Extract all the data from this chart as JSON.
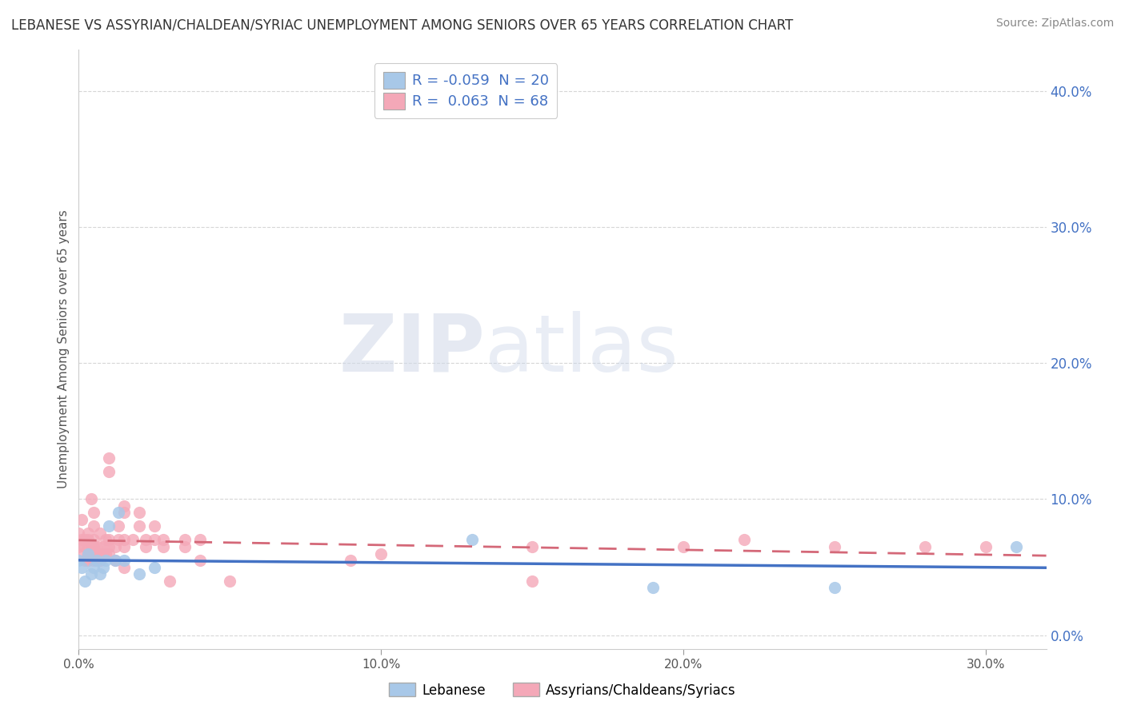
{
  "title": "LEBANESE VS ASSYRIAN/CHALDEAN/SYRIAC UNEMPLOYMENT AMONG SENIORS OVER 65 YEARS CORRELATION CHART",
  "source": "Source: ZipAtlas.com",
  "ylabel": "Unemployment Among Seniors over 65 years",
  "xlim": [
    0.0,
    0.32
  ],
  "ylim": [
    -0.01,
    0.43
  ],
  "watermark_zip": "ZIP",
  "watermark_atlas": "atlas",
  "background_color": "#ffffff",
  "grid_color": "#cccccc",
  "lebanese_color": "#a8c8e8",
  "lebanese_line_color": "#4472c4",
  "assyrian_color": "#f4a8b8",
  "assyrian_line_color": "#d46878",
  "lebanese_points": [
    [
      0.0,
      0.055
    ],
    [
      0.001,
      0.05
    ],
    [
      0.002,
      0.04
    ],
    [
      0.003,
      0.06
    ],
    [
      0.004,
      0.045
    ],
    [
      0.005,
      0.05
    ],
    [
      0.006,
      0.055
    ],
    [
      0.007,
      0.045
    ],
    [
      0.008,
      0.05
    ],
    [
      0.009,
      0.055
    ],
    [
      0.01,
      0.08
    ],
    [
      0.012,
      0.055
    ],
    [
      0.013,
      0.09
    ],
    [
      0.015,
      0.055
    ],
    [
      0.02,
      0.045
    ],
    [
      0.025,
      0.05
    ],
    [
      0.13,
      0.07
    ],
    [
      0.19,
      0.035
    ],
    [
      0.25,
      0.035
    ],
    [
      0.31,
      0.065
    ]
  ],
  "assyrian_points": [
    [
      0.0,
      0.065
    ],
    [
      0.0,
      0.075
    ],
    [
      0.001,
      0.06
    ],
    [
      0.001,
      0.07
    ],
    [
      0.001,
      0.085
    ],
    [
      0.002,
      0.055
    ],
    [
      0.002,
      0.065
    ],
    [
      0.002,
      0.07
    ],
    [
      0.003,
      0.055
    ],
    [
      0.003,
      0.06
    ],
    [
      0.003,
      0.065
    ],
    [
      0.003,
      0.07
    ],
    [
      0.003,
      0.075
    ],
    [
      0.004,
      0.06
    ],
    [
      0.004,
      0.065
    ],
    [
      0.004,
      0.1
    ],
    [
      0.005,
      0.055
    ],
    [
      0.005,
      0.065
    ],
    [
      0.005,
      0.07
    ],
    [
      0.005,
      0.08
    ],
    [
      0.005,
      0.09
    ],
    [
      0.006,
      0.06
    ],
    [
      0.006,
      0.065
    ],
    [
      0.007,
      0.055
    ],
    [
      0.007,
      0.06
    ],
    [
      0.007,
      0.075
    ],
    [
      0.008,
      0.06
    ],
    [
      0.008,
      0.065
    ],
    [
      0.009,
      0.06
    ],
    [
      0.009,
      0.07
    ],
    [
      0.01,
      0.06
    ],
    [
      0.01,
      0.065
    ],
    [
      0.01,
      0.07
    ],
    [
      0.01,
      0.12
    ],
    [
      0.01,
      0.13
    ],
    [
      0.012,
      0.055
    ],
    [
      0.012,
      0.065
    ],
    [
      0.013,
      0.07
    ],
    [
      0.013,
      0.08
    ],
    [
      0.015,
      0.05
    ],
    [
      0.015,
      0.065
    ],
    [
      0.015,
      0.07
    ],
    [
      0.015,
      0.09
    ],
    [
      0.015,
      0.095
    ],
    [
      0.018,
      0.07
    ],
    [
      0.02,
      0.08
    ],
    [
      0.02,
      0.09
    ],
    [
      0.022,
      0.065
    ],
    [
      0.022,
      0.07
    ],
    [
      0.025,
      0.07
    ],
    [
      0.025,
      0.08
    ],
    [
      0.028,
      0.065
    ],
    [
      0.028,
      0.07
    ],
    [
      0.03,
      0.04
    ],
    [
      0.035,
      0.065
    ],
    [
      0.035,
      0.07
    ],
    [
      0.04,
      0.055
    ],
    [
      0.04,
      0.07
    ],
    [
      0.05,
      0.04
    ],
    [
      0.09,
      0.055
    ],
    [
      0.1,
      0.06
    ],
    [
      0.15,
      0.04
    ],
    [
      0.15,
      0.065
    ],
    [
      0.2,
      0.065
    ],
    [
      0.22,
      0.07
    ],
    [
      0.25,
      0.065
    ],
    [
      0.28,
      0.065
    ],
    [
      0.3,
      0.065
    ]
  ],
  "legend_r1": "R = ",
  "legend_v1": "-0.059",
  "legend_n1": "  N = ",
  "legend_nv1": "20",
  "legend_r2": "R =  ",
  "legend_v2": "0.063",
  "legend_n2": "  N = ",
  "legend_nv2": "68",
  "bottom_legend": [
    "Lebanese",
    "Assyrians/Chaldeans/Syriacs"
  ],
  "ytick_labels": [
    "0.0%",
    "10.0%",
    "20.0%",
    "30.0%",
    "40.0%"
  ],
  "ytick_vals": [
    0.0,
    0.1,
    0.2,
    0.3,
    0.4
  ],
  "xtick_labels": [
    "0.0%",
    "10.0%",
    "20.0%",
    "30.0%"
  ],
  "xtick_vals": [
    0.0,
    0.1,
    0.2,
    0.3
  ]
}
